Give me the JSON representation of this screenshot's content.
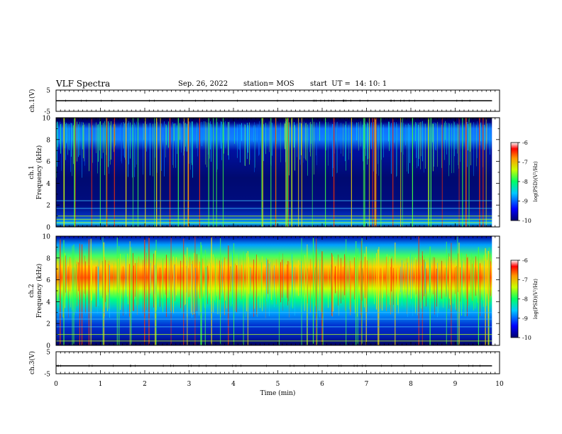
{
  "header": {
    "title": "VLF Spectra",
    "date": "Sep. 26, 2022",
    "station": "station= MOS",
    "start_ut": "start  UT =  14: 10: 1"
  },
  "chart_data": [
    {
      "type": "line",
      "panel": "ch1-waveform",
      "ylabel": "ch.1(V)",
      "ylim": [
        -5,
        5
      ],
      "yticks": [
        5,
        -5
      ],
      "xlim": [
        0,
        10
      ],
      "series": [
        {
          "values_description_free": true,
          "level": 0
        }
      ]
    },
    {
      "type": "heatmap",
      "panel": "ch1-spectrogram",
      "ylabel": "ch.1\nFrequency (kHz)",
      "ylabel_line1": "ch.1",
      "ylabel_line2": "Frequency (kHz)",
      "ylim": [
        0,
        10
      ],
      "yticks": [
        0,
        2,
        4,
        6,
        8,
        10
      ],
      "xlim": [
        0,
        9.83
      ],
      "colorbar": {
        "label": "log(PSD)(V²/Hz)",
        "range": [
          -10,
          -6
        ],
        "ticks": [
          -6,
          -7,
          -8,
          -9,
          -10
        ]
      },
      "dominant_band_khz": [
        8,
        10
      ],
      "hum_lines_khz": [
        0.4,
        0.7,
        1.0,
        1.7,
        2.4
      ]
    },
    {
      "type": "heatmap",
      "panel": "ch2-spectrogram",
      "ylabel_line1": "ch.2",
      "ylabel_line2": "Frequency (kHz)",
      "ylim": [
        0,
        10
      ],
      "yticks": [
        0,
        2,
        4,
        6,
        8,
        10
      ],
      "xlim": [
        0,
        9.83
      ],
      "colorbar": {
        "label": "log(PSD)(V²/Hz)",
        "range": [
          -10,
          -6
        ],
        "ticks": [
          -6,
          -7,
          -8,
          -9,
          -10
        ]
      },
      "dominant_band_khz": [
        5,
        8.5
      ],
      "hum_lines_khz": [
        0.4,
        1.0,
        1.7,
        2.4,
        3.0
      ]
    },
    {
      "type": "line",
      "panel": "ch3-waveform",
      "ylabel": "ch.3(V)",
      "ylim": [
        -5,
        5
      ],
      "yticks": [
        5,
        -5
      ],
      "xlim": [
        0,
        10
      ],
      "series": [
        {
          "level": -1.4
        }
      ]
    }
  ],
  "xaxis": {
    "label": "Time  (min)",
    "ticks": [
      "0",
      "1",
      "2",
      "3",
      "4",
      "5",
      "6",
      "7",
      "8",
      "9",
      "10"
    ],
    "range": [
      0,
      10
    ]
  },
  "colors": {
    "background": "#ffffff",
    "axis": "#000000",
    "spectro_low": "#00006e",
    "spectro_high": "#ff0000"
  }
}
